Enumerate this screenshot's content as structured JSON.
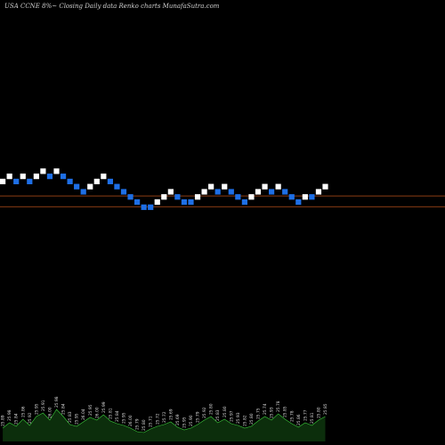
{
  "header": {
    "title": "USA CCNE 8%~  Closing Daily data  Renko  charts MunafaSutra.com"
  },
  "colors": {
    "background": "#000000",
    "up_brick": "#ffffff",
    "down_brick": "#1e6fe6",
    "reference_line": "#b8501a",
    "volume_fill": "#0c2e0c",
    "volume_edge": "#3ccb3c"
  },
  "chart_data": {
    "type": "renko",
    "title": "USA CCNE 8%~  Closing Daily data  Renko  charts MunafaSutra.com",
    "brick_levels": [
      6,
      7,
      6,
      7,
      6,
      7,
      8,
      7,
      8,
      7,
      6,
      5,
      4,
      5,
      6,
      7,
      6,
      5,
      4,
      3,
      2,
      1,
      1,
      2,
      3,
      4,
      3,
      2,
      2,
      3,
      4,
      5,
      4,
      5,
      4,
      3,
      2,
      3,
      4,
      5,
      4,
      5,
      4,
      3,
      2,
      3,
      3,
      4,
      5
    ],
    "brick_directions": [
      "up",
      "up",
      "down",
      "up",
      "down",
      "up",
      "up",
      "down",
      "up",
      "down",
      "down",
      "down",
      "down",
      "up",
      "up",
      "up",
      "down",
      "down",
      "down",
      "down",
      "down",
      "down",
      "down",
      "up",
      "up",
      "up",
      "down",
      "down",
      "down",
      "up",
      "up",
      "up",
      "down",
      "up",
      "down",
      "down",
      "down",
      "up",
      "up",
      "up",
      "down",
      "up",
      "down",
      "down",
      "down",
      "up",
      "down",
      "up",
      "up"
    ],
    "reference_lines": [
      3.2,
      1.1
    ],
    "volume": {
      "values": [
        0.3,
        0.42,
        0.34,
        0.5,
        0.36,
        0.56,
        0.64,
        0.48,
        0.72,
        0.56,
        0.38,
        0.34,
        0.44,
        0.54,
        0.48,
        0.6,
        0.46,
        0.4,
        0.36,
        0.3,
        0.22,
        0.2,
        0.28,
        0.34,
        0.38,
        0.44,
        0.32,
        0.26,
        0.3,
        0.38,
        0.48,
        0.56,
        0.42,
        0.5,
        0.4,
        0.36,
        0.3,
        0.34,
        0.46,
        0.56,
        0.48,
        0.62,
        0.5,
        0.4,
        0.32,
        0.42,
        0.36,
        0.48,
        0.56
      ]
    },
    "value_labels": [
      "25.89",
      "25.98",
      "25.84",
      "25.86",
      "25.92",
      "25.95",
      "25.91",
      "26.00",
      "25.98",
      "25.84",
      "25.83",
      "25.95",
      "26.04",
      "25.95",
      "26.00",
      "25.99",
      "25.81",
      "25.84",
      "25.95",
      "26.00",
      "25.79",
      "25.80",
      "25.71",
      "25.72",
      "25.72",
      "25.69",
      "25.69",
      "25.95",
      "25.90",
      "25.79",
      "25.92",
      "25.80",
      "25.83",
      "25.80",
      "25.97",
      "25.93",
      "25.82",
      "25.80",
      "25.75",
      "25.74",
      "25.93",
      "25.78",
      "25.85",
      "25.78",
      "25.86",
      "25.77",
      "25.81",
      "25.80",
      "25.85"
    ]
  }
}
